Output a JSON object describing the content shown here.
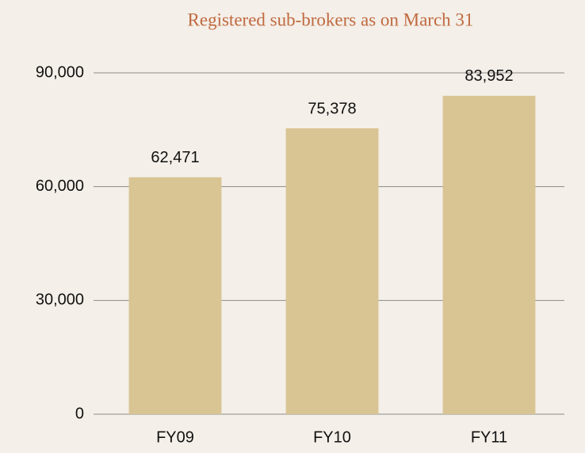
{
  "chart_data": {
    "type": "bar",
    "title": "Registered sub-brokers as on March 31",
    "categories": [
      "FY09",
      "FY10",
      "FY11"
    ],
    "values": [
      62471,
      75378,
      83952
    ],
    "value_labels": [
      "62,471",
      "75,378",
      "83,952"
    ],
    "color": "#d9c494",
    "ylim": [
      0,
      90000
    ],
    "yticks": [
      0,
      {
        "value": 30000,
        "label": "30,000"
      },
      {
        "value": 60000,
        "label": "60,000"
      },
      {
        "value": 90000,
        "label": "90,000"
      }
    ],
    "grid": true
  }
}
